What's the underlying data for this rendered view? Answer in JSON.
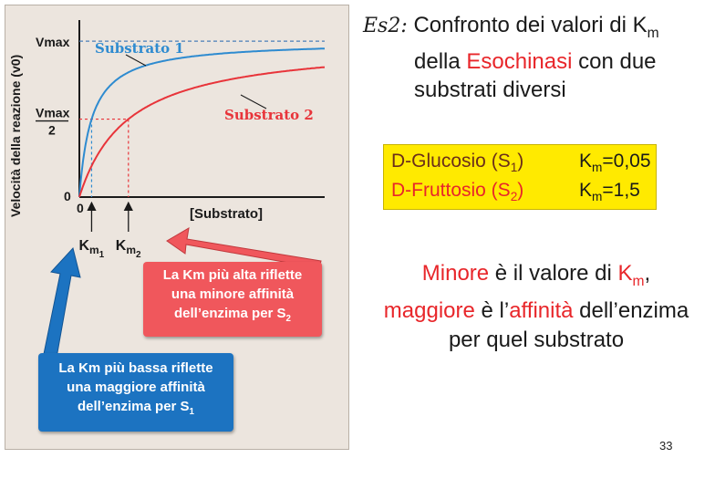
{
  "chart_data": {
    "type": "line",
    "title": "",
    "xlabel": "[Substrato]",
    "ylabel": "Velocità della reazione (v0)",
    "xlim": [
      0,
      20
    ],
    "ylim": [
      0,
      1.1
    ],
    "y_ticks": [
      {
        "value": 1.0,
        "label_top": "Vmax",
        "label_bottom": ""
      },
      {
        "value": 0.5,
        "label_top": "Vmax",
        "label_bottom": "2"
      },
      {
        "value": 0,
        "label_top": "0",
        "label_bottom": ""
      }
    ],
    "x_origin_label": "0",
    "vmax": 1.0,
    "series": [
      {
        "name": "Substrato 1",
        "km": 1.0,
        "color": "#2e8bd0"
      },
      {
        "name": "Substrato 2",
        "km": 4.0,
        "color": "#e8343a"
      }
    ],
    "km_markers": [
      {
        "label": "K",
        "sub": "m",
        "subsub": "1",
        "x": 1.0
      },
      {
        "label": "K",
        "sub": "m",
        "subsub": "2",
        "x": 4.0
      }
    ]
  },
  "callouts": {
    "high": [
      "La Km più alta riflette",
      "una minore affinità",
      "dell’enzima per S"
    ],
    "high_sub": "2",
    "low": [
      "La Km più bassa riflette",
      "una maggiore affinità",
      "dell’enzima per S"
    ],
    "low_sub": "1"
  },
  "text": {
    "es_label": "Es2:",
    "title_line1": "Confronto dei valori di K",
    "title_line1_sub": "m",
    "title_line2_pre": "della ",
    "title_line2_red": "Esochinasi",
    "title_line2_post": " con due",
    "title_line3": "substrati diversi",
    "km_table": [
      {
        "name": "D-Glucosio (S",
        "sub": "1",
        "close": ")",
        "km_label": "K",
        "km_sub": "m",
        "km_value": "=0,05",
        "color": "#6b2e1a"
      },
      {
        "name": "D-Fruttosio (S",
        "sub": "2",
        "close": ")",
        "km_label": "K",
        "km_sub": "m",
        "km_value": "=1,5",
        "color": "#e8262a"
      }
    ],
    "conclusion_l1_red1": "Minore",
    "conclusion_l1_mid": " è il valore di ",
    "conclusion_l1_red2": "K",
    "conclusion_l1_sub": "m",
    "conclusion_l1_end": ",",
    "conclusion_l2_red1": "maggiore",
    "conclusion_l2_mid": " è l’",
    "conclusion_l2_red2": "affinità",
    "conclusion_l2_end": " dell’enzima",
    "conclusion_l3": "per quel substrato"
  },
  "page_number": "33"
}
